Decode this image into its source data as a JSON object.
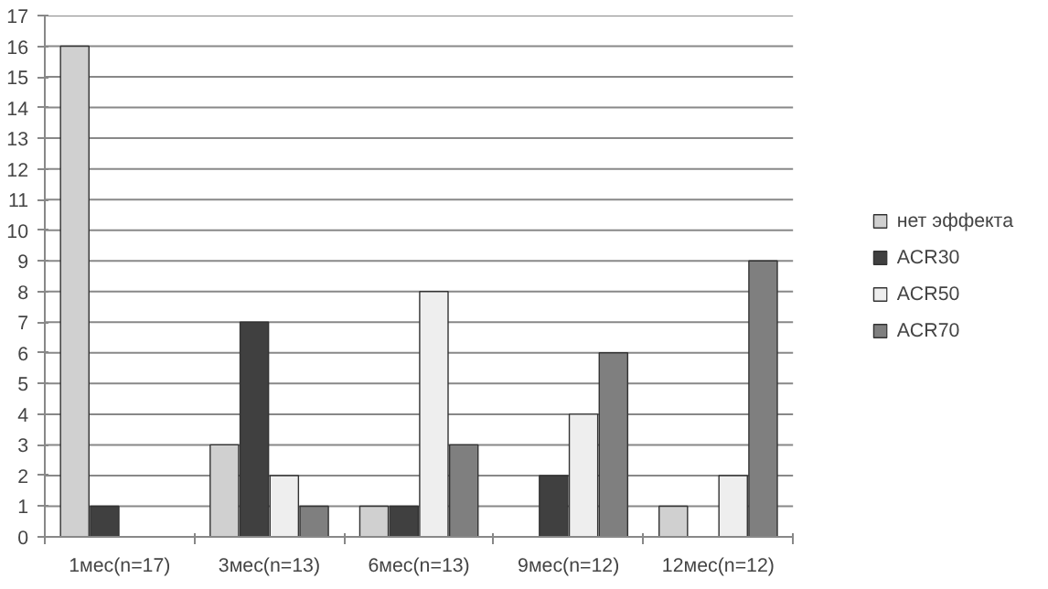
{
  "chart_data": {
    "type": "bar",
    "categories": [
      "1мес(n=17)",
      "3мес(n=13)",
      "6мес(n=13)",
      "9мес(n=12)",
      "12мес(n=12)"
    ],
    "series": [
      {
        "name": "нет эффекта",
        "color": "#d0d0d0",
        "values": [
          16,
          3,
          1,
          null,
          1
        ]
      },
      {
        "name": "ACR30",
        "color": "#404040",
        "values": [
          1,
          7,
          1,
          2,
          null
        ]
      },
      {
        "name": "ACR50",
        "color": "#eeeeee",
        "values": [
          null,
          2,
          8,
          4,
          2
        ]
      },
      {
        "name": "ACR70",
        "color": "#7f7f7f",
        "values": [
          null,
          1,
          3,
          6,
          9
        ]
      }
    ],
    "ylim": [
      0,
      17
    ],
    "yticks": [
      0,
      1,
      2,
      3,
      4,
      5,
      6,
      7,
      8,
      9,
      10,
      11,
      12,
      13,
      14,
      15,
      16,
      17
    ],
    "grid": "y",
    "legend": "right"
  }
}
